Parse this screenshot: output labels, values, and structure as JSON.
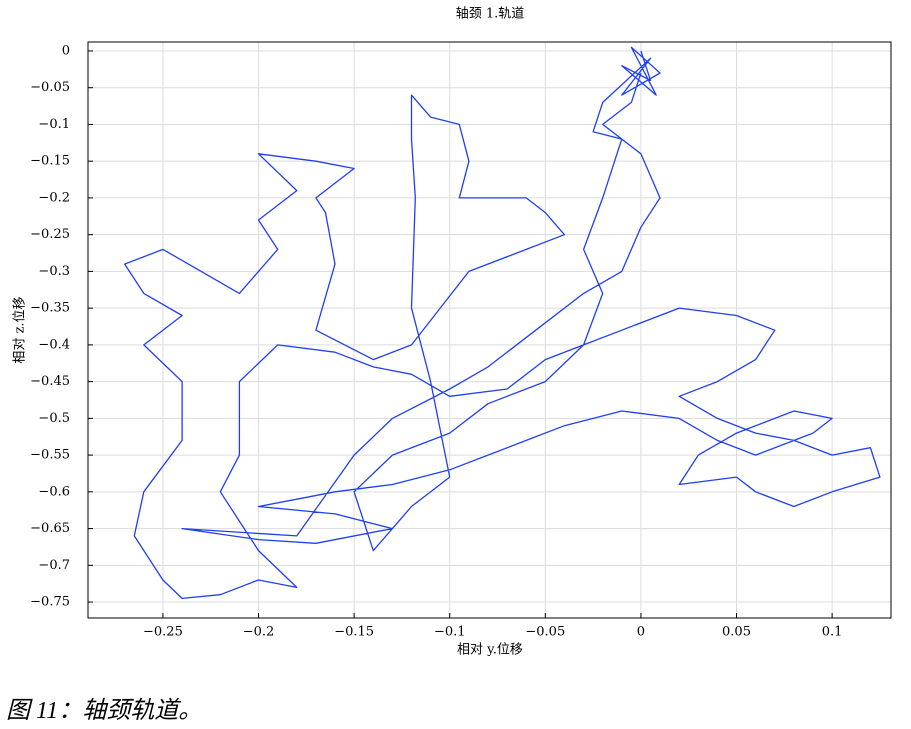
{
  "chart_data": {
    "type": "line",
    "title": "轴颈 1.轨道",
    "x_label": "相对 y.位移",
    "y_label": "相对 z.位移",
    "x": [
      0.0,
      0.005,
      -0.01,
      0.008,
      -0.005,
      0.01,
      -0.01,
      0.005,
      -0.02,
      -0.025,
      -0.01,
      -0.02,
      -0.03,
      -0.02,
      -0.03,
      -0.05,
      -0.08,
      -0.1,
      -0.13,
      -0.15,
      -0.14,
      -0.12,
      -0.1,
      -0.11,
      -0.12,
      -0.118,
      -0.12,
      -0.12,
      -0.11,
      -0.095,
      -0.09,
      -0.095,
      -0.06,
      -0.05,
      -0.04,
      -0.06,
      -0.09,
      -0.12,
      -0.14,
      -0.17,
      -0.16,
      -0.165,
      -0.17,
      -0.15,
      -0.17,
      -0.2,
      -0.18,
      -0.2,
      -0.19,
      -0.21,
      -0.23,
      -0.25,
      -0.27,
      -0.26,
      -0.24,
      -0.26,
      -0.24,
      -0.24,
      -0.26,
      -0.265,
      -0.25,
      -0.24,
      -0.22,
      -0.2,
      -0.18,
      -0.2,
      -0.22,
      -0.21,
      -0.21,
      -0.19,
      -0.16,
      -0.14,
      -0.12,
      -0.1,
      -0.07,
      -0.05,
      -0.03,
      -0.01,
      0.02,
      0.05,
      0.07,
      0.06,
      0.04,
      0.02,
      0.04,
      0.06,
      0.08,
      0.1,
      0.12,
      0.125,
      0.1,
      0.08,
      0.06,
      0.05,
      0.02,
      0.03,
      0.05,
      0.08,
      0.1,
      0.09,
      0.06,
      0.04,
      0.02,
      -0.01,
      -0.04,
      -0.06,
      -0.08,
      -0.1,
      -0.13,
      -0.16,
      -0.18,
      -0.2,
      -0.16,
      -0.13,
      -0.17,
      -0.2,
      -0.24,
      -0.18,
      -0.15,
      -0.13,
      -0.1,
      -0.08,
      -0.05,
      -0.03,
      -0.01,
      0.0,
      0.01,
      0.0,
      -0.02,
      -0.005,
      0.0
    ],
    "series": [
      {
        "name": "轨道",
        "color": "#1f3ff5",
        "values": [
          0.0,
          -0.04,
          -0.02,
          -0.06,
          0.005,
          -0.03,
          -0.06,
          -0.01,
          -0.07,
          -0.11,
          -0.12,
          -0.2,
          -0.27,
          -0.33,
          -0.4,
          -0.45,
          -0.48,
          -0.52,
          -0.55,
          -0.6,
          -0.68,
          -0.62,
          -0.58,
          -0.45,
          -0.35,
          -0.2,
          -0.12,
          -0.06,
          -0.09,
          -0.1,
          -0.15,
          -0.2,
          -0.2,
          -0.22,
          -0.25,
          -0.27,
          -0.3,
          -0.4,
          -0.42,
          -0.38,
          -0.29,
          -0.22,
          -0.2,
          -0.16,
          -0.15,
          -0.14,
          -0.19,
          -0.23,
          -0.27,
          -0.33,
          -0.3,
          -0.27,
          -0.29,
          -0.33,
          -0.36,
          -0.4,
          -0.45,
          -0.53,
          -0.6,
          -0.66,
          -0.72,
          -0.745,
          -0.74,
          -0.72,
          -0.73,
          -0.68,
          -0.6,
          -0.55,
          -0.45,
          -0.4,
          -0.41,
          -0.43,
          -0.44,
          -0.47,
          -0.46,
          -0.42,
          -0.4,
          -0.38,
          -0.35,
          -0.36,
          -0.38,
          -0.42,
          -0.45,
          -0.47,
          -0.5,
          -0.52,
          -0.53,
          -0.55,
          -0.54,
          -0.58,
          -0.6,
          -0.62,
          -0.6,
          -0.58,
          -0.59,
          -0.55,
          -0.52,
          -0.49,
          -0.5,
          -0.52,
          -0.55,
          -0.53,
          -0.5,
          -0.49,
          -0.51,
          -0.53,
          -0.55,
          -0.57,
          -0.59,
          -0.6,
          -0.61,
          -0.62,
          -0.63,
          -0.65,
          -0.67,
          -0.665,
          -0.65,
          -0.66,
          -0.55,
          -0.5,
          -0.46,
          -0.43,
          -0.37,
          -0.33,
          -0.3,
          -0.24,
          -0.2,
          -0.14,
          -0.1,
          -0.07,
          -0.03
        ]
      }
    ],
    "xlim": [
      -0.2892,
      0.1308
    ],
    "ylim": [
      -0.7717,
      0.0122
    ],
    "xticks": [
      {
        "value": -0.25,
        "label": "−0.25"
      },
      {
        "value": -0.2,
        "label": "−0.2"
      },
      {
        "value": -0.15,
        "label": "−0.15"
      },
      {
        "value": -0.1,
        "label": "−0.1"
      },
      {
        "value": -0.05,
        "label": "−0.05"
      },
      0,
      {
        "value": 0.05,
        "label": "0.05"
      },
      {
        "value": 0.1,
        "label": "0.1"
      }
    ],
    "yticks": [
      0,
      {
        "value": -0.05,
        "label": "−0.05"
      },
      {
        "value": -0.1,
        "label": "−0.1"
      },
      {
        "value": -0.15,
        "label": "−0.15"
      },
      {
        "value": -0.2,
        "label": "−0.2"
      },
      {
        "value": -0.25,
        "label": "−0.25"
      },
      {
        "value": -0.3,
        "label": "−0.3"
      },
      {
        "value": -0.35,
        "label": "−0.35"
      },
      {
        "value": -0.4,
        "label": "−0.4"
      },
      {
        "value": -0.45,
        "label": "−0.45"
      },
      {
        "value": -0.5,
        "label": "−0.5"
      },
      {
        "value": -0.55,
        "label": "−0.55"
      },
      {
        "value": -0.6,
        "label": "−0.6"
      },
      {
        "value": -0.65,
        "label": "−0.65"
      },
      {
        "value": -0.7,
        "label": "−0.7"
      },
      {
        "value": -0.75,
        "label": "−0.75"
      }
    ],
    "grid": true
  },
  "caption": "图 11：轴颈轨道。"
}
